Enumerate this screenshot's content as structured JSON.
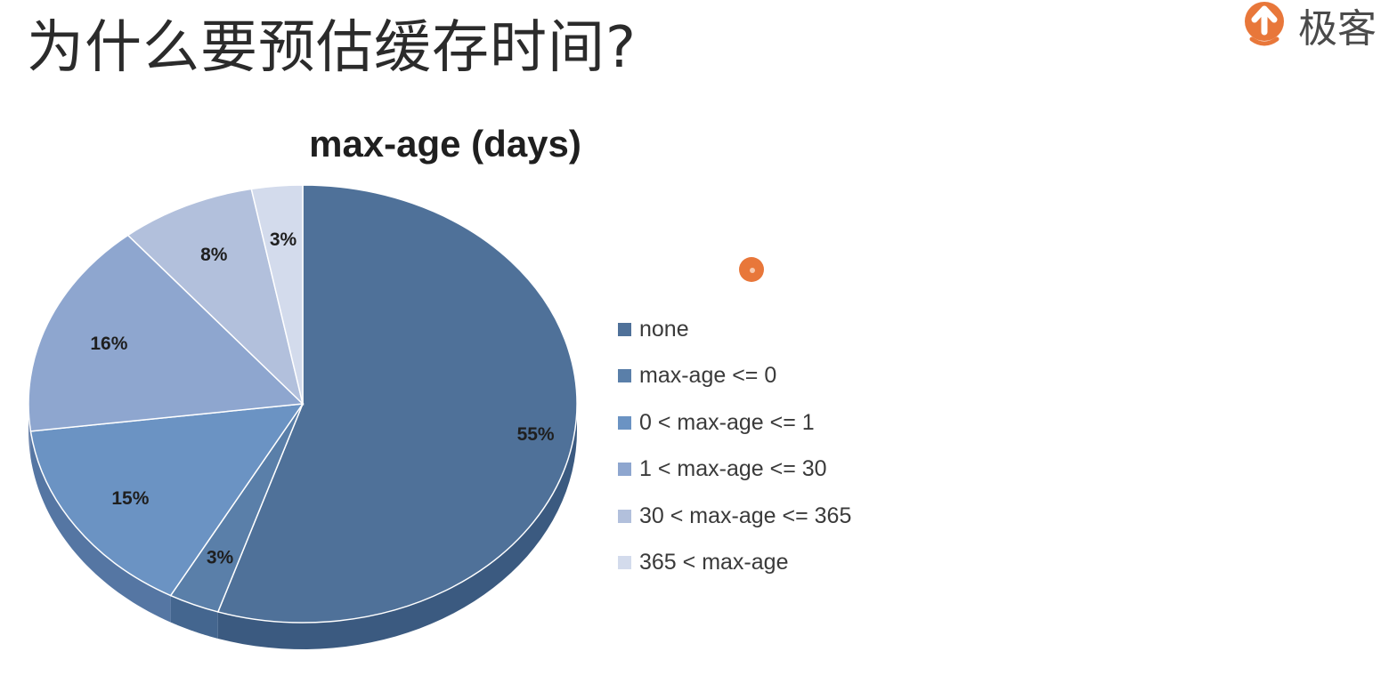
{
  "slide": {
    "title": "为什么要预估缓存时间?",
    "logo_text": "极客",
    "logo_icon": "geekbang-logo-icon",
    "accent_color": "#e8773a"
  },
  "chart_data": {
    "type": "pie",
    "title": "max-age (days)",
    "categories": [
      "none",
      "max-age <= 0",
      "0 < max-age <= 1",
      "1 < max-age <= 30",
      "30 < max-age <= 365",
      "365 < max-age"
    ],
    "values": [
      55,
      3,
      15,
      16,
      8,
      3
    ],
    "labels": [
      "55%",
      "3%",
      "15%",
      "16%",
      "8%",
      "3%"
    ],
    "colors": [
      "#4f7199",
      "#5a7fa9",
      "#6b93c3",
      "#8ea6cf",
      "#b2c0dc",
      "#d3dbec"
    ],
    "side_colors": [
      "#3b5a80",
      "#44668f",
      "#5576a3",
      "#6e86ad",
      "#909fbd",
      "#afb8ca"
    ],
    "legend_position": "right",
    "style": "3d"
  }
}
